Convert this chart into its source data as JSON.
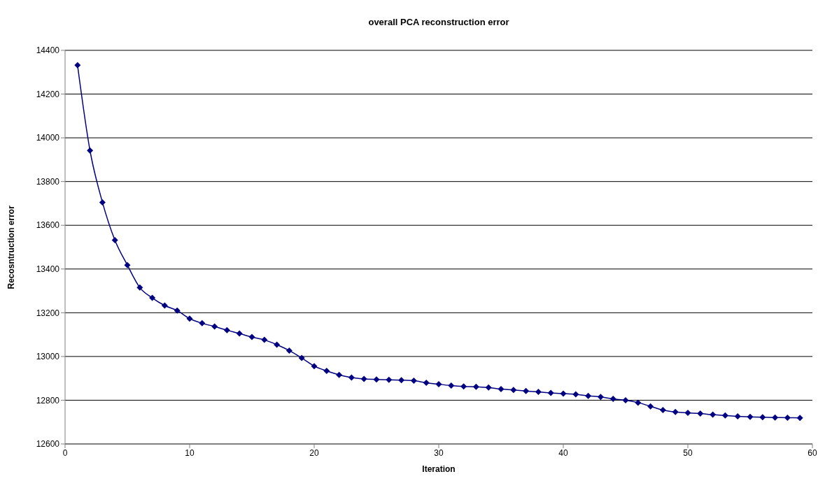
{
  "chart_data": {
    "type": "line",
    "title": "overall PCA reconstruction error",
    "xlabel": "Iteration",
    "ylabel": "Recosntruction error",
    "x": [
      1,
      2,
      3,
      4,
      5,
      6,
      7,
      8,
      9,
      10,
      11,
      12,
      13,
      14,
      15,
      16,
      17,
      18,
      19,
      20,
      21,
      22,
      23,
      24,
      25,
      26,
      27,
      28,
      29,
      30,
      31,
      32,
      33,
      34,
      35,
      36,
      37,
      38,
      39,
      40,
      41,
      42,
      43,
      44,
      45,
      46,
      47,
      48,
      49,
      50,
      51,
      52,
      53,
      54,
      55,
      56,
      57,
      58,
      59
    ],
    "series": [
      {
        "color": "#000080",
        "values": [
          14332,
          13942,
          13705,
          13532,
          13418,
          13315,
          13268,
          13233,
          13210,
          13173,
          13152,
          13137,
          13120,
          13105,
          13089,
          13076,
          13054,
          13027,
          12993,
          12956,
          12934,
          12916,
          12904,
          12897,
          12895,
          12893,
          12892,
          12889,
          12880,
          12873,
          12867,
          12863,
          12861,
          12858,
          12851,
          12847,
          12842,
          12838,
          12833,
          12830,
          12827,
          12820,
          12815,
          12806,
          12800,
          12789,
          12772,
          12755,
          12746,
          12742,
          12739,
          12734,
          12730,
          12726,
          12724,
          12722,
          12721,
          12720,
          12719
        ]
      }
    ],
    "xlim": [
      0,
      60
    ],
    "xticks": [
      0,
      10,
      20,
      30,
      40,
      50,
      60
    ],
    "ylim": [
      12600,
      14400
    ],
    "yticks": [
      12600,
      12800,
      13000,
      13200,
      13400,
      13600,
      13800,
      14000,
      14200,
      14400
    ],
    "grid": "y",
    "marker": "diamond",
    "line_style": "solid"
  }
}
